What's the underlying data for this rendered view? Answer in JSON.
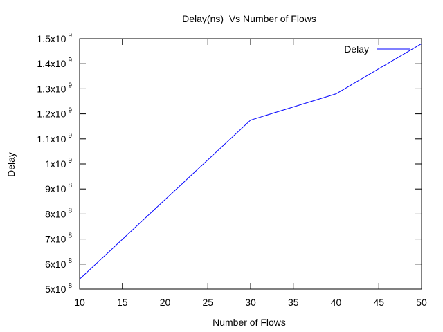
{
  "chart_data": {
    "type": "line",
    "title": "Delay(ns)  Vs Number of Flows",
    "xlabel": "Number of Flows",
    "ylabel": "Delay",
    "xlim": [
      10,
      50
    ],
    "ylim": [
      500000000,
      1500000000
    ],
    "grid": false,
    "legend_position": "top-right",
    "x_ticks": [
      10,
      15,
      20,
      25,
      30,
      35,
      40,
      45,
      50
    ],
    "x_tick_labels": [
      "10",
      "15",
      "20",
      "25",
      "30",
      "35",
      "40",
      "45",
      "50"
    ],
    "y_ticks": [
      {
        "value": 500000000,
        "mantissa": "5x10",
        "exponent": "8"
      },
      {
        "value": 600000000,
        "mantissa": "6x10",
        "exponent": "8"
      },
      {
        "value": 700000000,
        "mantissa": "7x10",
        "exponent": "8"
      },
      {
        "value": 800000000,
        "mantissa": "8x10",
        "exponent": "8"
      },
      {
        "value": 900000000,
        "mantissa": "9x10",
        "exponent": "8"
      },
      {
        "value": 1000000000,
        "mantissa": "1x10",
        "exponent": "9"
      },
      {
        "value": 1100000000,
        "mantissa": "1.1x10",
        "exponent": "9"
      },
      {
        "value": 1200000000,
        "mantissa": "1.2x10",
        "exponent": "9"
      },
      {
        "value": 1300000000,
        "mantissa": "1.3x10",
        "exponent": "9"
      },
      {
        "value": 1400000000,
        "mantissa": "1.4x10",
        "exponent": "9"
      },
      {
        "value": 1500000000,
        "mantissa": "1.5x10",
        "exponent": "9"
      }
    ],
    "series": [
      {
        "name": "Delay",
        "color": "#0000ff",
        "x": [
          10,
          30,
          40,
          50
        ],
        "y": [
          540000000,
          1175000000,
          1280000000,
          1480000000
        ]
      }
    ]
  }
}
